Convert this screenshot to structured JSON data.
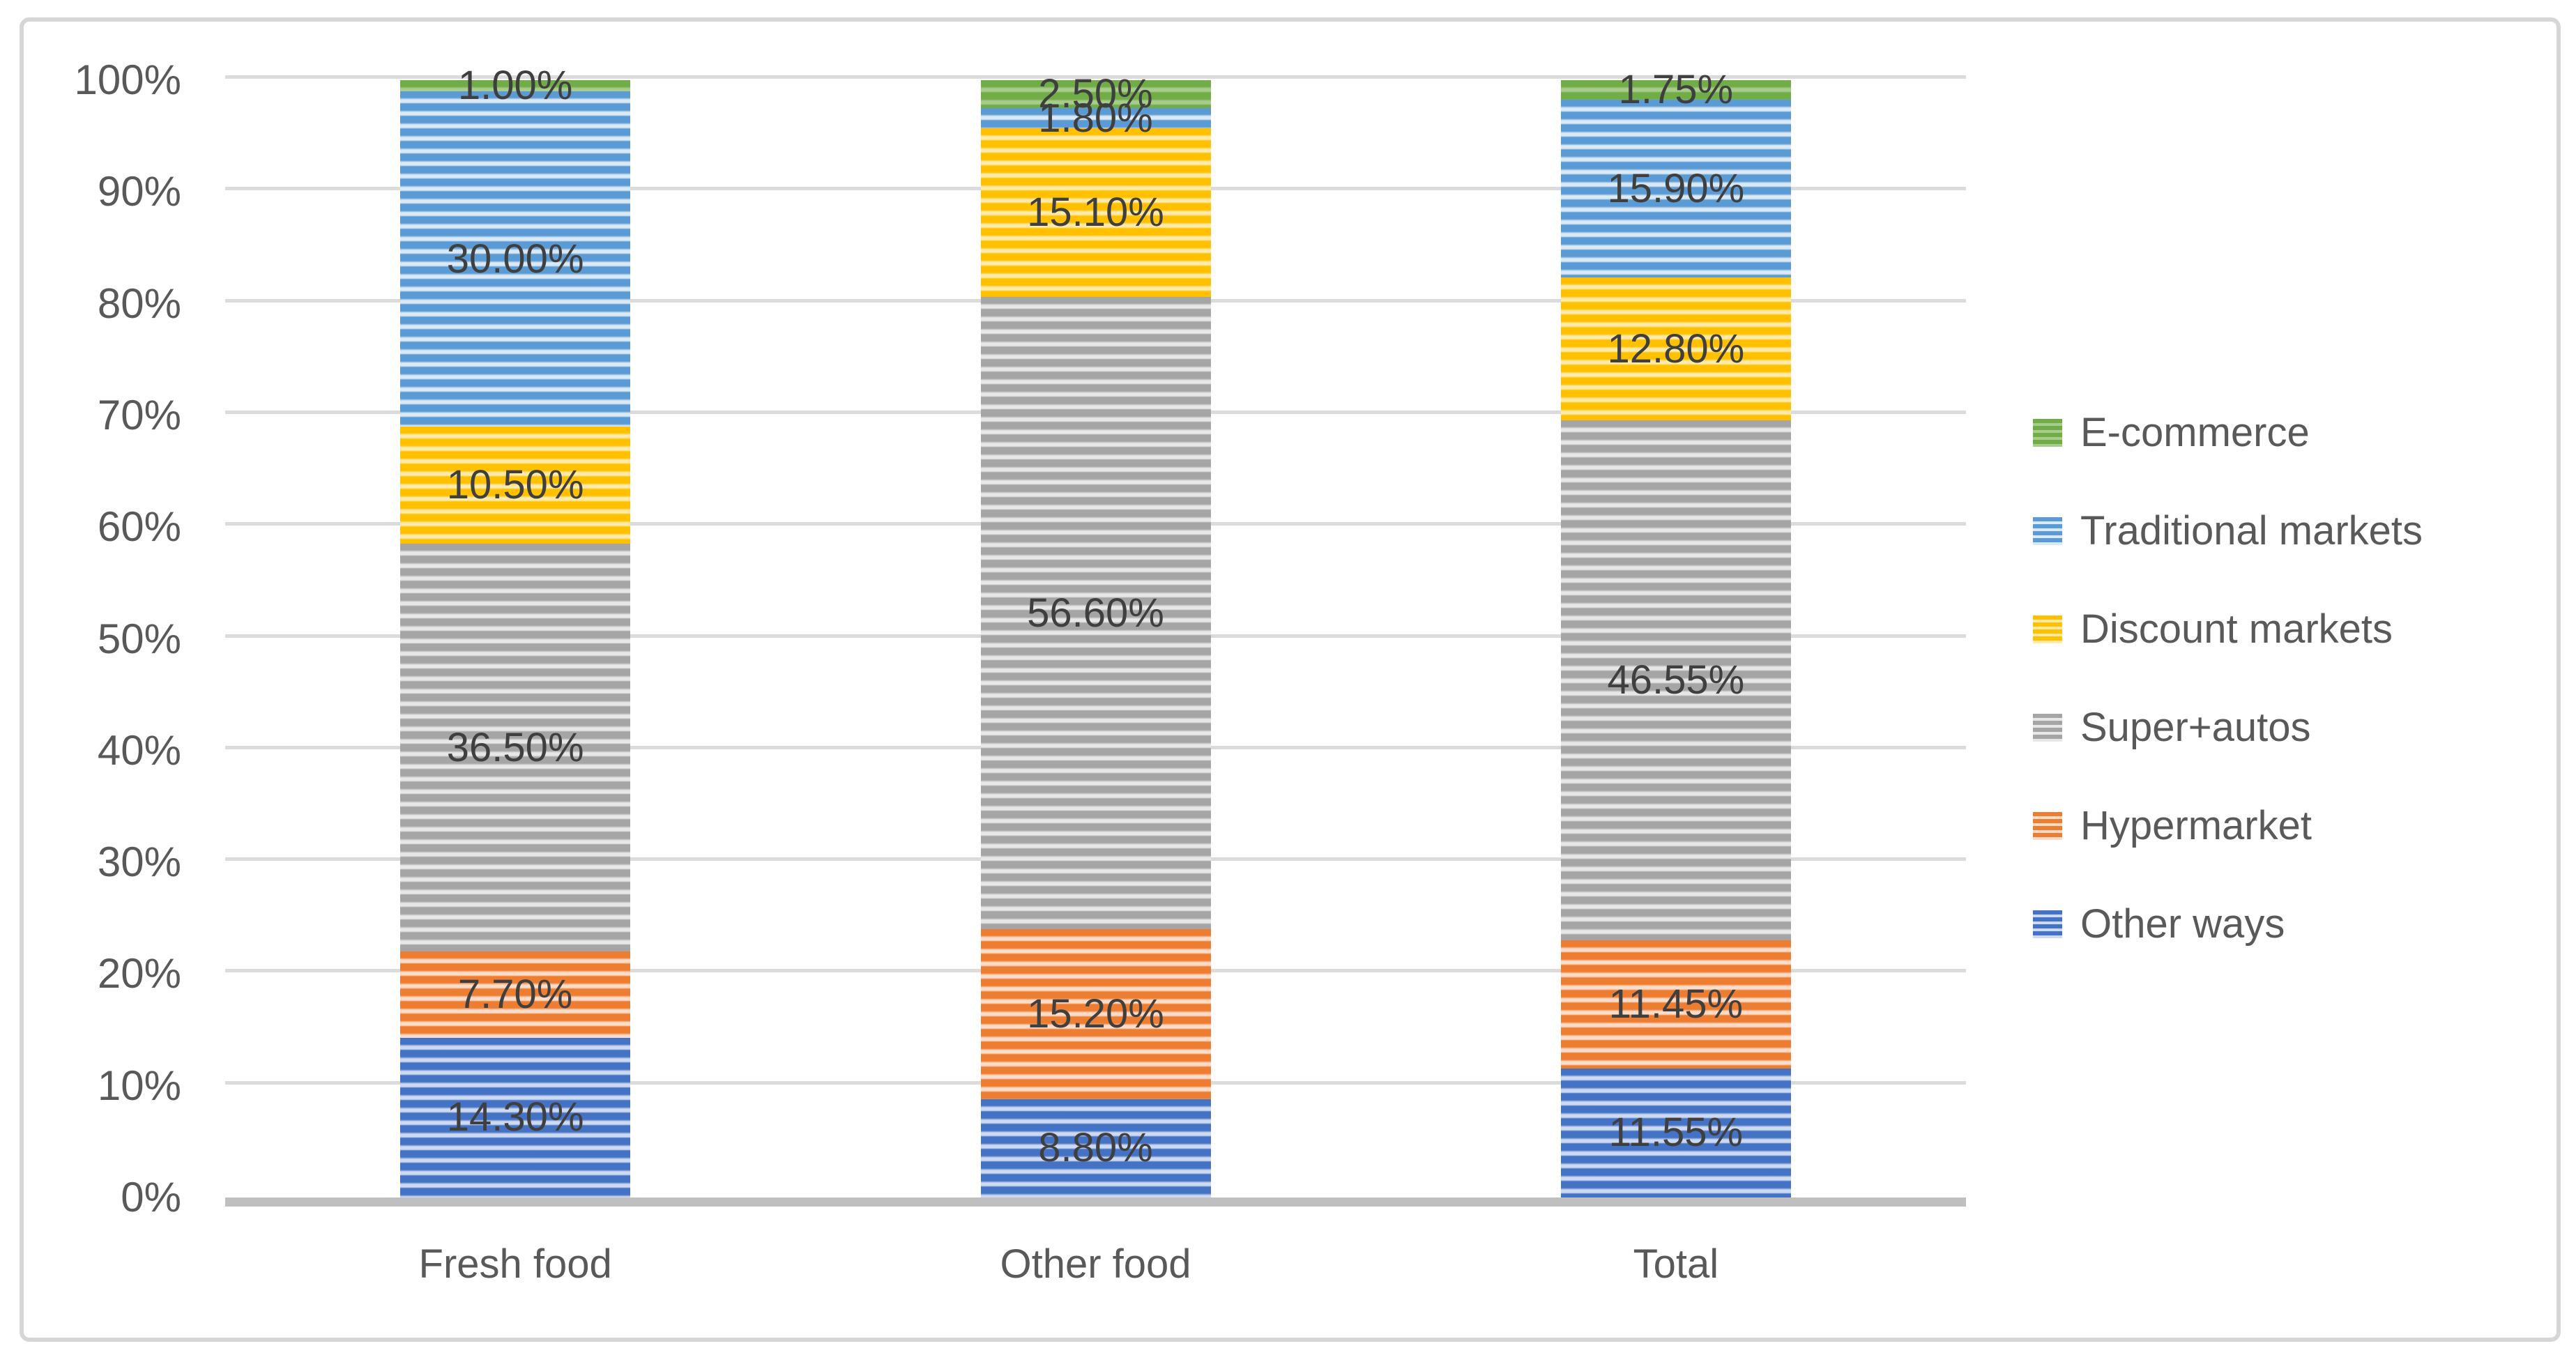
{
  "figure": {
    "background": "#FFFFFF",
    "frame_border_color": "#D6D6D6",
    "gridline_color": "#DBDBDB",
    "axis_line_color": "#BFBFBF",
    "axis_text_color": "#595959",
    "data_label_color": "#3F3F3F"
  },
  "chart_data": {
    "type": "bar",
    "variant": "stacked-100-percent-column",
    "title": "",
    "pattern_fill": "horizontal-stripes",
    "grid": true,
    "data_labels": true,
    "categories": [
      "Fresh food",
      "Other food",
      "Total"
    ],
    "series": [
      {
        "name": "Other ways",
        "color": "#4472C4",
        "light": "#CDD9F0",
        "values": [
          14.3,
          8.8,
          11.55
        ]
      },
      {
        "name": "Hypermarket",
        "color": "#ED7D31",
        "light": "#FADCC9",
        "values": [
          7.7,
          15.2,
          11.45
        ]
      },
      {
        "name": "Super+autos",
        "color": "#A5A5A5",
        "light": "#E7E7E7",
        "values": [
          36.5,
          56.6,
          46.55
        ]
      },
      {
        "name": "Discount markets",
        "color": "#FFC000",
        "light": "#FFEAA8",
        "values": [
          10.5,
          15.1,
          12.8
        ]
      },
      {
        "name": "Traditional markets",
        "color": "#5B9BD5",
        "light": "#DBE9F5",
        "values": [
          30.0,
          1.8,
          15.9
        ]
      },
      {
        "name": "E-commerce",
        "color": "#70AD47",
        "light": "#A8CC8C",
        "values": [
          1.0,
          2.5,
          1.75
        ]
      }
    ],
    "data_label_format": "0.00%",
    "y_axis": {
      "min": 0,
      "max": 100,
      "ticks": [
        "0%",
        "10%",
        "20%",
        "30%",
        "40%",
        "50%",
        "60%",
        "70%",
        "80%",
        "90%",
        "100%"
      ]
    },
    "x_axis": {
      "labels": [
        "Fresh food",
        "Other food",
        "Total"
      ]
    },
    "legend": {
      "position": "right",
      "items": [
        "E-commerce",
        "Traditional markets",
        "Discount markets",
        "Super+autos",
        "Hypermarket",
        "Other ways"
      ]
    }
  }
}
